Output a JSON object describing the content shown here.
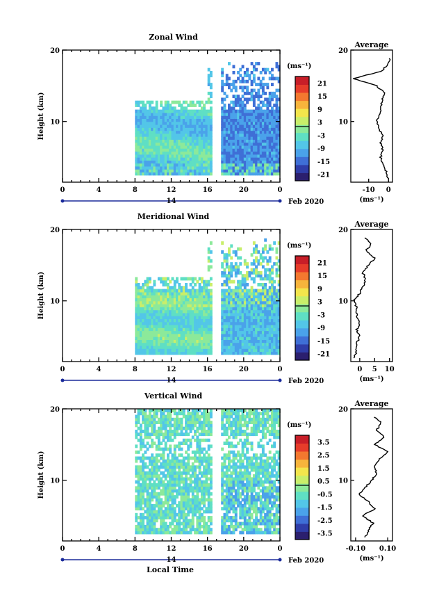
{
  "page": {
    "date_label": "Feb 2020",
    "xlabel": "Local Time"
  },
  "colors": {
    "scale": [
      "#2b1f6e",
      "#2f3da8",
      "#3f6fd6",
      "#4aa2ea",
      "#53c6e8",
      "#5fdfc4",
      "#8ce99a",
      "#c9ee6a",
      "#f3e54c",
      "#f7b43c",
      "#f3782f",
      "#e63c2a",
      "#c81e28"
    ]
  },
  "chart_data": [
    {
      "type": "heatmap",
      "title": "Zonal Wind",
      "ylabel": "Height (km)",
      "xlim": [
        0,
        24
      ],
      "ylim": [
        1.5,
        20
      ],
      "xticks": [
        "0",
        "4",
        "8",
        "12",
        "16",
        "20",
        "0"
      ],
      "xticks_values": [
        0,
        4,
        8,
        12,
        16,
        20,
        24
      ],
      "yticks": [
        "10",
        "20"
      ],
      "day_label": "14",
      "date_label": "Feb 2020",
      "colorbar": {
        "unit": "(ms⁻¹)",
        "ticks": [
          "21",
          "15",
          "9",
          "3",
          "-3",
          "-9",
          "-15",
          "-21"
        ],
        "range": [
          -24,
          24
        ]
      },
      "data_extent": {
        "time_start": 8,
        "time_end": 24,
        "gap": [
          16.5,
          17.3
        ]
      },
      "profile": {
        "title": "Average",
        "xlabel": "(ms⁻¹)",
        "xticks": [
          "-10",
          "0"
        ],
        "xticks_values": [
          -10,
          0
        ],
        "xlim": [
          -19,
          2
        ],
        "yticks": [
          "10",
          "20"
        ],
        "y": [
          2,
          3,
          4,
          5,
          6,
          7,
          8,
          9,
          10,
          11,
          12,
          13,
          14,
          15,
          16,
          17,
          18,
          19
        ],
        "x": [
          0,
          -1,
          -3,
          -4,
          -3,
          -4,
          -3,
          -5,
          -6,
          -4,
          -4,
          -3,
          -2,
          -6,
          -18,
          -4,
          0,
          1
        ]
      }
    },
    {
      "type": "heatmap",
      "title": "Meridional Wind",
      "ylabel": "Height (km)",
      "xlim": [
        0,
        24
      ],
      "ylim": [
        1.5,
        20
      ],
      "xticks": [
        "0",
        "4",
        "8",
        "12",
        "16",
        "20",
        "0"
      ],
      "xticks_values": [
        0,
        4,
        8,
        12,
        16,
        20,
        24
      ],
      "yticks": [
        "10",
        "20"
      ],
      "day_label": "14",
      "date_label": "Feb 2020",
      "colorbar": {
        "unit": "(ms⁻¹)",
        "ticks": [
          "21",
          "15",
          "9",
          "3",
          "-3",
          "-9",
          "-15",
          "-21"
        ],
        "range": [
          -24,
          24
        ]
      },
      "data_extent": {
        "time_start": 8,
        "time_end": 24,
        "gap": [
          16.5,
          17.3
        ]
      },
      "profile": {
        "title": "Average",
        "xlabel": "(ms⁻¹)",
        "xticks": [
          "0",
          "5",
          "10"
        ],
        "xticks_values": [
          0,
          5,
          10
        ],
        "xlim": [
          -3,
          11
        ],
        "yticks": [
          "10",
          "20"
        ],
        "y": [
          2,
          3,
          4,
          5,
          6,
          7,
          8,
          9,
          10,
          11,
          12,
          13,
          14,
          15,
          16,
          17,
          18,
          19
        ],
        "x": [
          -2,
          -1,
          -1,
          0,
          -1,
          0,
          -1,
          -1,
          -2,
          0,
          1,
          2,
          1,
          3,
          5,
          2,
          4,
          1
        ]
      }
    },
    {
      "type": "heatmap",
      "title": "Vertical Wind",
      "ylabel": "Height (km)",
      "xlim": [
        0,
        24
      ],
      "ylim": [
        1.5,
        20
      ],
      "xticks": [
        "0",
        "4",
        "8",
        "12",
        "16",
        "20",
        "0"
      ],
      "xticks_values": [
        0,
        4,
        8,
        12,
        16,
        20,
        24
      ],
      "yticks": [
        "10",
        "20"
      ],
      "day_label": "14",
      "date_label": "Feb 2020",
      "colorbar": {
        "unit": "(ms⁻¹)",
        "ticks": [
          "3.5",
          "2.5",
          "1.5",
          "0.5",
          "-0.5",
          "-1.5",
          "-2.5",
          "-3.5"
        ],
        "range": [
          -4,
          4
        ]
      },
      "data_extent": {
        "time_start": 8,
        "time_end": 24,
        "gap": [
          16.5,
          17.3
        ]
      },
      "profile": {
        "title": "Average",
        "xlabel": "(ms⁻¹)",
        "xticks": [
          "-0.10",
          "0.10"
        ],
        "xticks_values": [
          -0.1,
          0.1
        ],
        "xlim": [
          -0.13,
          0.13
        ],
        "yticks": [
          "10",
          "20"
        ],
        "y": [
          2,
          3,
          4,
          5,
          6,
          7,
          8,
          9,
          10,
          11,
          12,
          13,
          14,
          15,
          16,
          17,
          18,
          19
        ],
        "x": [
          -0.04,
          -0.02,
          0.01,
          -0.06,
          0.02,
          -0.02,
          -0.08,
          -0.04,
          0.0,
          0.03,
          0.02,
          0.05,
          0.1,
          0.02,
          0.08,
          0.03,
          0.06,
          0.01
        ]
      }
    }
  ]
}
